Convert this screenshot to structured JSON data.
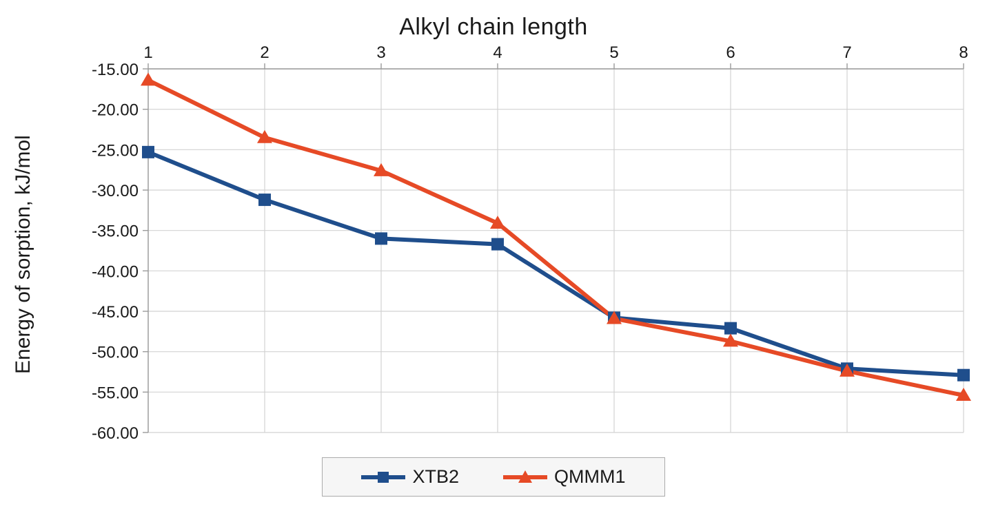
{
  "chart_data": {
    "type": "line",
    "title": "Alkyl chain length",
    "xlabel_position": "top",
    "ylabel": "Energy of sorption, kJ/mol",
    "x": [
      1,
      2,
      3,
      4,
      5,
      6,
      7,
      8
    ],
    "ylim": [
      -60,
      -15
    ],
    "ytick_step": 5,
    "ytick_decimals": 2,
    "grid": true,
    "legend_position": "bottom",
    "series": [
      {
        "name": "XTB2",
        "marker": "square",
        "color": "#1f4e8c",
        "values": [
          -25.3,
          -31.2,
          -36.0,
          -36.7,
          -45.8,
          -47.1,
          -52.1,
          -52.9
        ]
      },
      {
        "name": "QMMM1",
        "marker": "triangle",
        "color": "#e64a26",
        "values": [
          -16.4,
          -23.5,
          -27.6,
          -34.1,
          -45.9,
          -48.7,
          -52.4,
          -55.4
        ]
      }
    ],
    "colors": {
      "grid": "#d2d2d2",
      "axis": "#9a9a9a",
      "text": "#1a1a1a",
      "legend_bg": "#f6f6f6",
      "legend_border": "#ababab",
      "background": "#ffffff"
    }
  }
}
